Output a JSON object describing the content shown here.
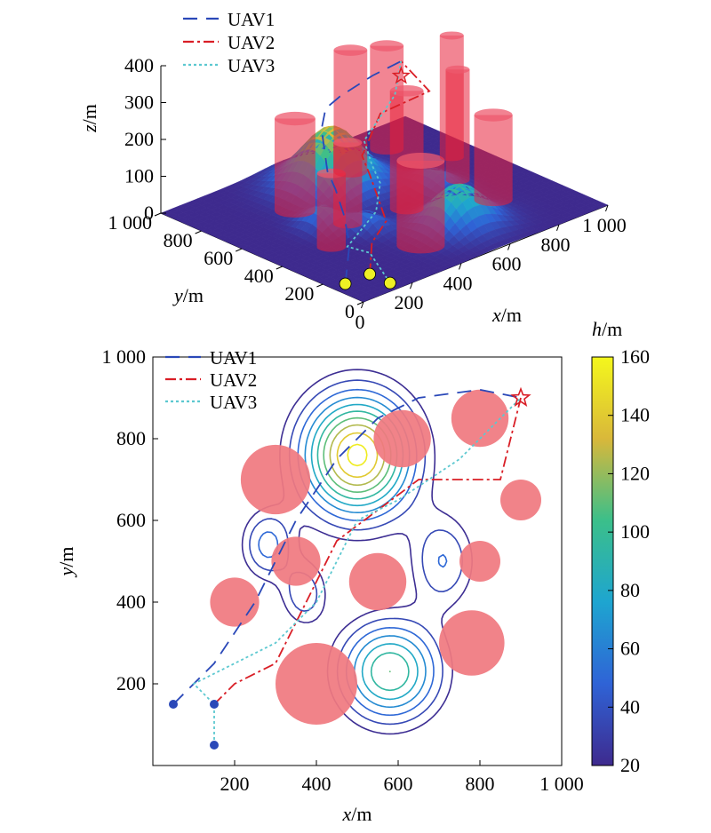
{
  "chart_data": [
    {
      "type": "surface3d",
      "axes": {
        "x": {
          "label_var": "x",
          "label_unit": "/m",
          "ticks": [
            "0",
            "200",
            "400",
            "600",
            "800",
            "1 000"
          ],
          "range": [
            0,
            1000
          ]
        },
        "y": {
          "label_var": "y",
          "label_unit": "/m",
          "ticks": [
            "0",
            "200",
            "400",
            "600",
            "800",
            "1 000"
          ],
          "range": [
            0,
            1000
          ]
        },
        "z": {
          "label_var": "z",
          "label_unit": "/m",
          "ticks": [
            "0",
            "100",
            "200",
            "300",
            "400"
          ],
          "range": [
            0,
            400
          ]
        }
      },
      "legend": [
        "UAV1",
        "UAV2",
        "UAV3"
      ],
      "legend_position": "top-left",
      "terrain_peaks": [
        {
          "x": 500,
          "y": 760,
          "h": 160
        },
        {
          "x": 580,
          "y": 230,
          "h": 110
        },
        {
          "x": 280,
          "y": 540,
          "h": 55
        },
        {
          "x": 710,
          "y": 500,
          "h": 50
        },
        {
          "x": 370,
          "y": 420,
          "h": 45
        }
      ],
      "cylinders": [
        {
          "x": 300,
          "y": 700,
          "r": 85,
          "h": 250
        },
        {
          "x": 610,
          "y": 800,
          "r": 70,
          "h": 330
        },
        {
          "x": 800,
          "y": 850,
          "r": 70,
          "h": 280
        },
        {
          "x": 900,
          "y": 650,
          "r": 50,
          "h": 330
        },
        {
          "x": 800,
          "y": 500,
          "r": 50,
          "h": 300
        },
        {
          "x": 780,
          "y": 300,
          "r": 80,
          "h": 230
        },
        {
          "x": 550,
          "y": 450,
          "r": 70,
          "h": 320
        },
        {
          "x": 350,
          "y": 500,
          "r": 60,
          "h": 220
        },
        {
          "x": 200,
          "y": 400,
          "r": 60,
          "h": 200
        },
        {
          "x": 400,
          "y": 200,
          "r": 100,
          "h": 230
        }
      ],
      "goal_altitude": 160
    },
    {
      "type": "contour",
      "title": "",
      "xlabel_var": "x",
      "xlabel_unit": "/m",
      "ylabel_var": "y",
      "ylabel_unit": "/m",
      "xlim": [
        0,
        1000
      ],
      "ylim": [
        0,
        1000
      ],
      "x_ticks": [
        "200",
        "400",
        "600",
        "800",
        "1 000"
      ],
      "y_ticks": [
        "200",
        "400",
        "600",
        "800",
        "1 000"
      ],
      "colorbar": {
        "label_var": "h",
        "label_unit": "/m",
        "min": 20,
        "max": 160,
        "ticks": [
          "20",
          "40",
          "60",
          "80",
          "100",
          "120",
          "140",
          "160"
        ]
      },
      "contour_levels": [
        22,
        35,
        50,
        65,
        80,
        95,
        110,
        125,
        140,
        155
      ],
      "legend": [
        "UAV1",
        "UAV2",
        "UAV3"
      ],
      "legend_position": "top-left",
      "obstacles": [
        {
          "x": 300,
          "y": 700,
          "r": 85
        },
        {
          "x": 610,
          "y": 800,
          "r": 70
        },
        {
          "x": 800,
          "y": 850,
          "r": 70
        },
        {
          "x": 900,
          "y": 650,
          "r": 50
        },
        {
          "x": 800,
          "y": 500,
          "r": 50
        },
        {
          "x": 780,
          "y": 300,
          "r": 80
        },
        {
          "x": 550,
          "y": 450,
          "r": 70
        },
        {
          "x": 350,
          "y": 500,
          "r": 60
        },
        {
          "x": 200,
          "y": 400,
          "r": 60
        },
        {
          "x": 400,
          "y": 200,
          "r": 100
        }
      ],
      "goal": {
        "x": 900,
        "y": 900
      },
      "series": [
        {
          "name": "UAV1",
          "color": "#2a48b8",
          "dash": "16 10",
          "start": {
            "x": 50,
            "y": 150
          },
          "points": [
            [
              50,
              150
            ],
            [
              150,
              250
            ],
            [
              250,
              400
            ],
            [
              300,
              500
            ],
            [
              350,
              600
            ],
            [
              450,
              750
            ],
            [
              550,
              850
            ],
            [
              650,
              900
            ],
            [
              800,
              920
            ],
            [
              900,
              900
            ]
          ]
        },
        {
          "name": "UAV2",
          "color": "#d91e26",
          "dash": "12 4 3 4",
          "start": {
            "x": 150,
            "y": 150
          },
          "points": [
            [
              150,
              150
            ],
            [
              200,
              200
            ],
            [
              300,
              250
            ],
            [
              350,
              350
            ],
            [
              400,
              450
            ],
            [
              450,
              550
            ],
            [
              650,
              700
            ],
            [
              850,
              700
            ],
            [
              900,
              900
            ]
          ]
        },
        {
          "name": "UAV3",
          "color": "#5cc8d0",
          "dash": "3 3",
          "start": {
            "x": 150,
            "y": 50
          },
          "points": [
            [
              150,
              50
            ],
            [
              150,
              150
            ],
            [
              100,
              200
            ],
            [
              300,
              300
            ],
            [
              400,
              400
            ],
            [
              450,
              500
            ],
            [
              500,
              600
            ],
            [
              600,
              650
            ],
            [
              750,
              750
            ],
            [
              900,
              900
            ]
          ]
        }
      ]
    }
  ]
}
